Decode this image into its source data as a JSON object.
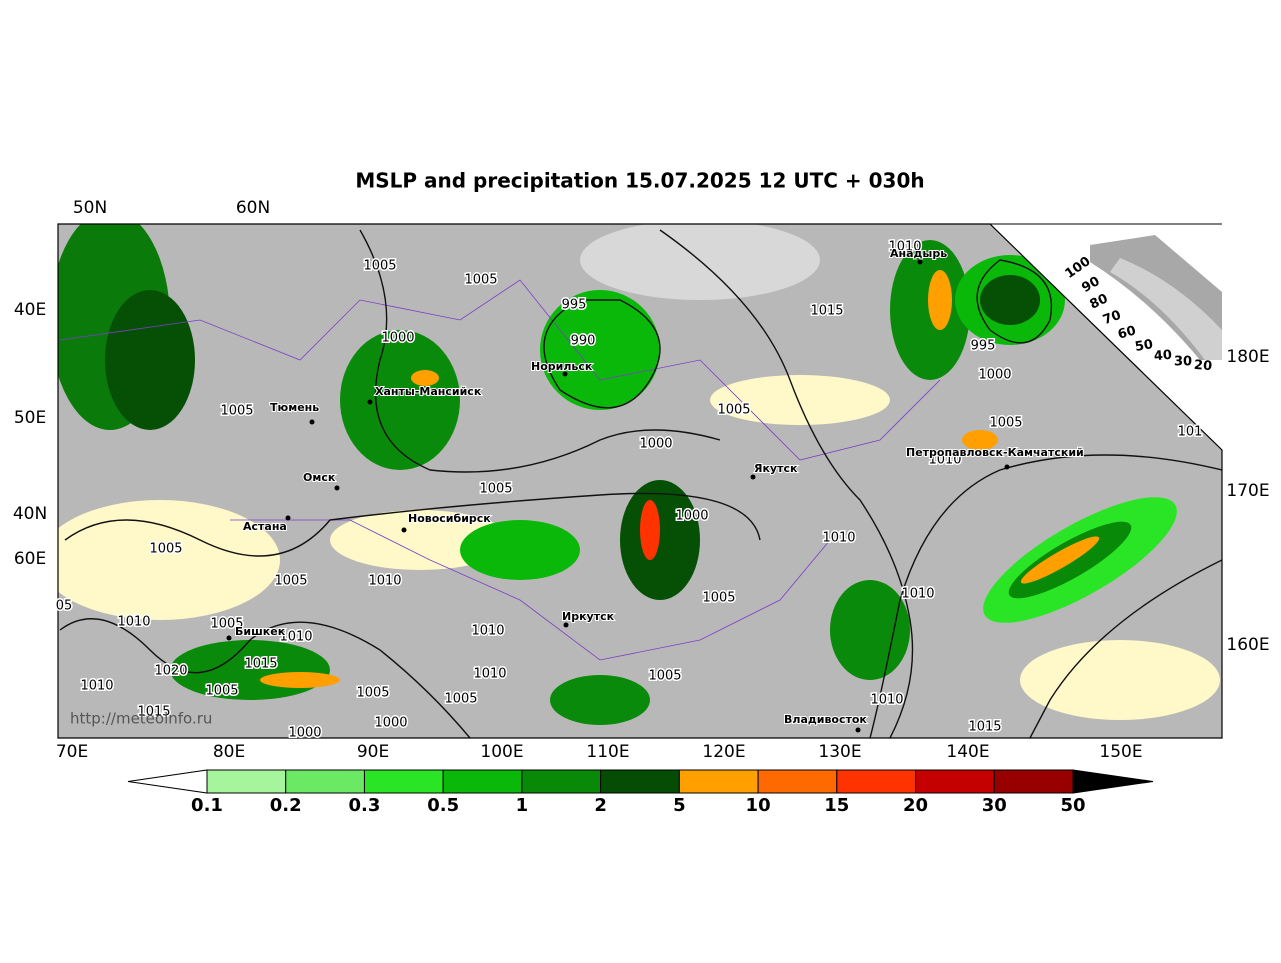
{
  "map": {
    "title": "MSLP and precipitation 15.07.2025 12 UTC + 030h",
    "top_labels": [
      "50N",
      "60N"
    ],
    "left_labels": [
      "40E",
      "50E",
      "40N",
      "60E"
    ],
    "right_labels": [
      "180E",
      "170E",
      "160E"
    ],
    "bottom_labels": [
      "70E",
      "80E",
      "90E",
      "100E",
      "110E",
      "120E",
      "130E",
      "140E",
      "150E"
    ],
    "cities": [
      "Анадырь",
      "Норильск",
      "Ханты-Мансийск",
      "Тюмень",
      "Петропавловск-Камчатский",
      "Якутск",
      "Омск",
      "Новосибирск",
      "Астана",
      "Иркутск",
      "Бишкек",
      "Владивосток"
    ],
    "isobar_labels": [
      "1005",
      "1005",
      "995",
      "1015",
      "1010",
      "990",
      "1000",
      "995",
      "1000",
      "1005",
      "1005",
      "1000",
      "1005",
      "1010",
      "1005",
      "1000",
      "1010",
      "1005",
      "1005",
      "1010",
      "1010",
      "1005",
      "05",
      "1010",
      "1005",
      "1010",
      "1010",
      "1015",
      "1020",
      "1010",
      "1005",
      "1010",
      "1005",
      "1005",
      "1005",
      "1015",
      "1010",
      "1000",
      "1000",
      "1015",
      "101"
    ],
    "watermark": "http://meteoinfo.ru"
  },
  "colorbar": {
    "labels": [
      "0.1",
      "0.2",
      "0.3",
      "0.5",
      "1",
      "2",
      "5",
      "10",
      "15",
      "20",
      "30",
      "50"
    ],
    "colors": [
      "#a6f59d",
      "#6ce964",
      "#2ae526",
      "#0ab80a",
      "#088a08",
      "#054d05",
      "#ff9f00",
      "#ff6a00",
      "#ff3300",
      "#c40000",
      "#980000"
    ]
  },
  "cloud_scale": {
    "labels": [
      "100",
      "90",
      "80",
      "70",
      "60",
      "50",
      "40",
      "30",
      "20"
    ]
  }
}
